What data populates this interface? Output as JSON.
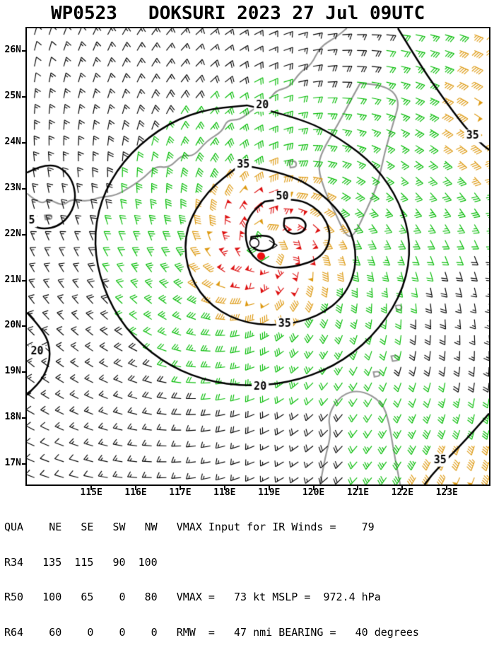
{
  "title": {
    "storm_id": "WP0523",
    "storm_info": "DOKSURI 2023 27 Jul 09UTC"
  },
  "map": {
    "lon_range": [
      113.55,
      123.95
    ],
    "lat_range": [
      16.55,
      26.5
    ],
    "lat_ticks": [
      {
        "label": "26N",
        "value": 26
      },
      {
        "label": "25N",
        "value": 25
      },
      {
        "label": "24N",
        "value": 24
      },
      {
        "label": "23N",
        "value": 23
      },
      {
        "label": "22N",
        "value": 22
      },
      {
        "label": "21N",
        "value": 21
      },
      {
        "label": "20N",
        "value": 20
      },
      {
        "label": "19N",
        "value": 19
      },
      {
        "label": "18N",
        "value": 18
      },
      {
        "label": "17N",
        "value": 17
      }
    ],
    "lon_ticks": [
      {
        "label": "115E",
        "value": 115
      },
      {
        "label": "116E",
        "value": 116
      },
      {
        "label": "117E",
        "value": 117
      },
      {
        "label": "118E",
        "value": 118
      },
      {
        "label": "119E",
        "value": 119
      },
      {
        "label": "120E",
        "value": 120
      },
      {
        "label": "121E",
        "value": 121
      },
      {
        "label": "122E",
        "value": 122
      },
      {
        "label": "123E",
        "value": 123
      }
    ],
    "colors": {
      "coast": "#999999",
      "contour": "#000000",
      "label_bg": "#ffffff",
      "barbs": {
        "lt20": "#000000",
        "ge20": "#00bb00",
        "ge35": "#dd9911",
        "ge50": "#dd1111"
      },
      "center_dot": "#ee1111",
      "eye_circle_fill": "#ffffff"
    },
    "wind_field": {
      "clon": 118.9,
      "clat": 21.75,
      "vmax": 73,
      "rmw": 0.78,
      "decay": 0.85,
      "lon_start": 113.72,
      "lon_step": 0.33,
      "lat_start": 16.7,
      "lat_step": 0.345,
      "bumps": [
        {
          "lon": 124.8,
          "lat": 24.9,
          "amp": 46,
          "sigma": 1.6
        },
        {
          "lon": 123.6,
          "lat": 15.7,
          "amp": 46,
          "sigma": 1.5
        }
      ]
    },
    "contours": [
      {
        "closed": true,
        "points": [
          [
            118.5,
            24.82
          ],
          [
            119.7,
            24.55
          ],
          [
            120.6,
            24.1
          ],
          [
            121.4,
            23.5
          ],
          [
            121.95,
            22.7
          ],
          [
            122.2,
            21.8
          ],
          [
            122.05,
            20.85
          ],
          [
            121.5,
            19.95
          ],
          [
            120.7,
            19.25
          ],
          [
            119.7,
            18.82
          ],
          [
            118.6,
            18.68
          ],
          [
            117.5,
            18.82
          ],
          [
            116.55,
            19.25
          ],
          [
            115.75,
            19.95
          ],
          [
            115.25,
            20.85
          ],
          [
            115.05,
            21.8
          ],
          [
            115.2,
            22.75
          ],
          [
            115.7,
            23.6
          ],
          [
            116.5,
            24.3
          ],
          [
            117.45,
            24.72
          ],
          [
            118.5,
            24.82
          ]
        ]
      },
      {
        "closed": true,
        "points": [
          [
            118.35,
            23.52
          ],
          [
            119.3,
            23.38
          ],
          [
            120.15,
            22.95
          ],
          [
            120.8,
            22.25
          ],
          [
            121.0,
            21.45
          ],
          [
            120.75,
            20.7
          ],
          [
            120.1,
            20.2
          ],
          [
            119.2,
            20.0
          ],
          [
            118.3,
            20.1
          ],
          [
            117.55,
            20.55
          ],
          [
            117.12,
            21.3
          ],
          [
            117.12,
            22.15
          ],
          [
            117.6,
            22.95
          ],
          [
            118.35,
            23.52
          ]
        ]
      },
      {
        "closed": true,
        "points": [
          [
            118.9,
            22.72
          ],
          [
            119.55,
            22.82
          ],
          [
            120.15,
            22.55
          ],
          [
            120.42,
            22.0
          ],
          [
            120.2,
            21.5
          ],
          [
            119.55,
            21.28
          ],
          [
            118.95,
            21.28
          ],
          [
            118.52,
            21.62
          ],
          [
            118.45,
            22.15
          ],
          [
            118.62,
            22.5
          ],
          [
            118.9,
            22.72
          ]
        ]
      },
      {
        "closed": true,
        "points": [
          [
            118.6,
            21.95
          ],
          [
            118.9,
            22.0
          ],
          [
            119.12,
            21.9
          ],
          [
            119.1,
            21.7
          ],
          [
            118.8,
            21.62
          ],
          [
            118.58,
            21.75
          ],
          [
            118.6,
            21.95
          ]
        ]
      },
      {
        "closed": true,
        "points": [
          [
            119.35,
            22.35
          ],
          [
            119.65,
            22.4
          ],
          [
            119.85,
            22.25
          ],
          [
            119.78,
            22.05
          ],
          [
            119.5,
            22.0
          ],
          [
            119.32,
            22.15
          ],
          [
            119.35,
            22.35
          ]
        ]
      },
      {
        "closed": false,
        "points": [
          [
            121.9,
            26.5
          ],
          [
            122.4,
            25.7
          ],
          [
            122.9,
            25.0
          ],
          [
            123.4,
            24.35
          ],
          [
            123.75,
            24.0
          ],
          [
            123.95,
            23.85
          ]
        ]
      },
      {
        "closed": false,
        "points": [
          [
            123.95,
            18.1
          ],
          [
            123.5,
            17.6
          ],
          [
            123.05,
            17.15
          ],
          [
            122.7,
            16.8
          ],
          [
            122.5,
            16.55
          ]
        ]
      },
      {
        "closed": false,
        "points": [
          [
            113.55,
            20.3
          ],
          [
            113.95,
            19.9
          ],
          [
            114.1,
            19.4
          ],
          [
            113.95,
            18.9
          ],
          [
            113.6,
            18.55
          ],
          [
            113.55,
            18.5
          ]
        ]
      },
      {
        "closed": false,
        "points": [
          [
            113.55,
            23.35
          ],
          [
            114.05,
            23.6
          ],
          [
            114.55,
            23.3
          ],
          [
            114.68,
            22.7
          ],
          [
            114.35,
            22.2
          ],
          [
            113.85,
            22.1
          ],
          [
            113.55,
            22.3
          ]
        ]
      }
    ],
    "contour_labels": [
      {
        "text": "20",
        "lon": 118.85,
        "lat": 24.82
      },
      {
        "text": "20",
        "lon": 118.8,
        "lat": 18.68
      },
      {
        "text": "35",
        "lon": 118.42,
        "lat": 23.52
      },
      {
        "text": "35",
        "lon": 119.35,
        "lat": 20.05
      },
      {
        "text": "50",
        "lon": 119.3,
        "lat": 22.82
      },
      {
        "text": "35",
        "lon": 123.58,
        "lat": 24.15
      },
      {
        "text": "35",
        "lon": 122.85,
        "lat": 17.08
      },
      {
        "text": "20",
        "lon": 113.78,
        "lat": 19.45
      },
      {
        "text": "5",
        "lon": 113.66,
        "lat": 22.3
      }
    ],
    "coastlines": [
      {
        "closed": false,
        "points": [
          [
            113.55,
            22.9
          ],
          [
            113.85,
            22.65
          ],
          [
            114.05,
            22.78
          ],
          [
            114.35,
            22.62
          ],
          [
            114.55,
            22.78
          ],
          [
            114.9,
            22.72
          ],
          [
            115.2,
            22.82
          ],
          [
            115.55,
            22.85
          ],
          [
            115.9,
            23.05
          ],
          [
            116.2,
            23.25
          ],
          [
            116.45,
            23.5
          ],
          [
            116.75,
            23.45
          ],
          [
            117.05,
            23.75
          ],
          [
            117.3,
            23.7
          ],
          [
            117.6,
            24.05
          ],
          [
            117.95,
            24.25
          ],
          [
            118.05,
            24.5
          ],
          [
            118.35,
            24.5
          ],
          [
            118.65,
            24.75
          ],
          [
            118.95,
            24.85
          ],
          [
            119.15,
            25.15
          ],
          [
            119.45,
            25.2
          ],
          [
            119.7,
            25.55
          ],
          [
            119.95,
            25.7
          ],
          [
            120.15,
            26.1
          ],
          [
            120.5,
            26.3
          ],
          [
            120.75,
            26.5
          ]
        ]
      },
      {
        "closed": true,
        "points": [
          [
            121.05,
            25.3
          ],
          [
            121.6,
            25.28
          ],
          [
            121.95,
            24.95
          ],
          [
            121.8,
            24.45
          ],
          [
            121.6,
            23.8
          ],
          [
            121.45,
            23.1
          ],
          [
            121.2,
            22.55
          ],
          [
            120.9,
            21.95
          ],
          [
            120.72,
            21.98
          ],
          [
            120.5,
            22.45
          ],
          [
            120.25,
            22.95
          ],
          [
            120.1,
            23.45
          ],
          [
            120.18,
            23.8
          ],
          [
            120.55,
            24.4
          ],
          [
            120.85,
            24.95
          ],
          [
            121.05,
            25.3
          ]
        ]
      },
      {
        "closed": false,
        "points": [
          [
            120.15,
            16.55
          ],
          [
            120.25,
            17.1
          ],
          [
            120.4,
            17.65
          ],
          [
            120.32,
            18.05
          ],
          [
            120.6,
            18.5
          ],
          [
            121.05,
            18.62
          ],
          [
            121.55,
            18.35
          ],
          [
            121.7,
            17.9
          ],
          [
            121.8,
            17.3
          ],
          [
            121.9,
            16.8
          ],
          [
            121.95,
            16.55
          ]
        ]
      },
      {
        "closed": true,
        "points": [
          [
            119.45,
            23.6
          ],
          [
            119.6,
            23.62
          ],
          [
            119.62,
            23.48
          ],
          [
            119.48,
            23.46
          ]
        ]
      },
      {
        "closed": true,
        "points": [
          [
            113.95,
            22.42
          ],
          [
            114.1,
            22.45
          ],
          [
            114.12,
            22.34
          ],
          [
            113.97,
            22.33
          ]
        ]
      },
      {
        "closed": true,
        "points": [
          [
            121.75,
            19.35
          ],
          [
            121.9,
            19.38
          ],
          [
            121.92,
            19.26
          ],
          [
            121.78,
            19.24
          ]
        ]
      },
      {
        "closed": true,
        "points": [
          [
            121.35,
            19.0
          ],
          [
            121.48,
            19.03
          ],
          [
            121.5,
            18.92
          ],
          [
            121.37,
            18.9
          ]
        ]
      },
      {
        "closed": true,
        "points": [
          [
            121.85,
            20.45
          ],
          [
            121.97,
            20.48
          ],
          [
            121.99,
            20.37
          ],
          [
            121.87,
            20.35
          ]
        ]
      }
    ],
    "markers": {
      "eye_circle": {
        "lon": 118.67,
        "lat": 21.82,
        "radius_px": 6.5
      },
      "center_dot": {
        "lon": 118.82,
        "lat": 21.53,
        "radius_px": 5.5
      }
    }
  },
  "stats": {
    "qua_label": "QUA",
    "quadrants": [
      "NE",
      "SE",
      "SW",
      "NW"
    ],
    "ir_label": "VMAX Input for IR Winds =",
    "ir_value": "79",
    "rows": [
      {
        "label": "R34",
        "values": [
          "135",
          "115",
          "90",
          "100"
        ]
      },
      {
        "label": "R50",
        "values": [
          "100",
          "65",
          "0",
          "80"
        ]
      },
      {
        "label": "R64",
        "values": [
          "60",
          "0",
          "0",
          "0"
        ]
      }
    ],
    "vmax_mslp_line": "VMAX =   73 kt MSLP =  972.4 hPa",
    "rmw_bearing_line": "RMW  =   47 nmi BEARING =   40 degrees"
  }
}
